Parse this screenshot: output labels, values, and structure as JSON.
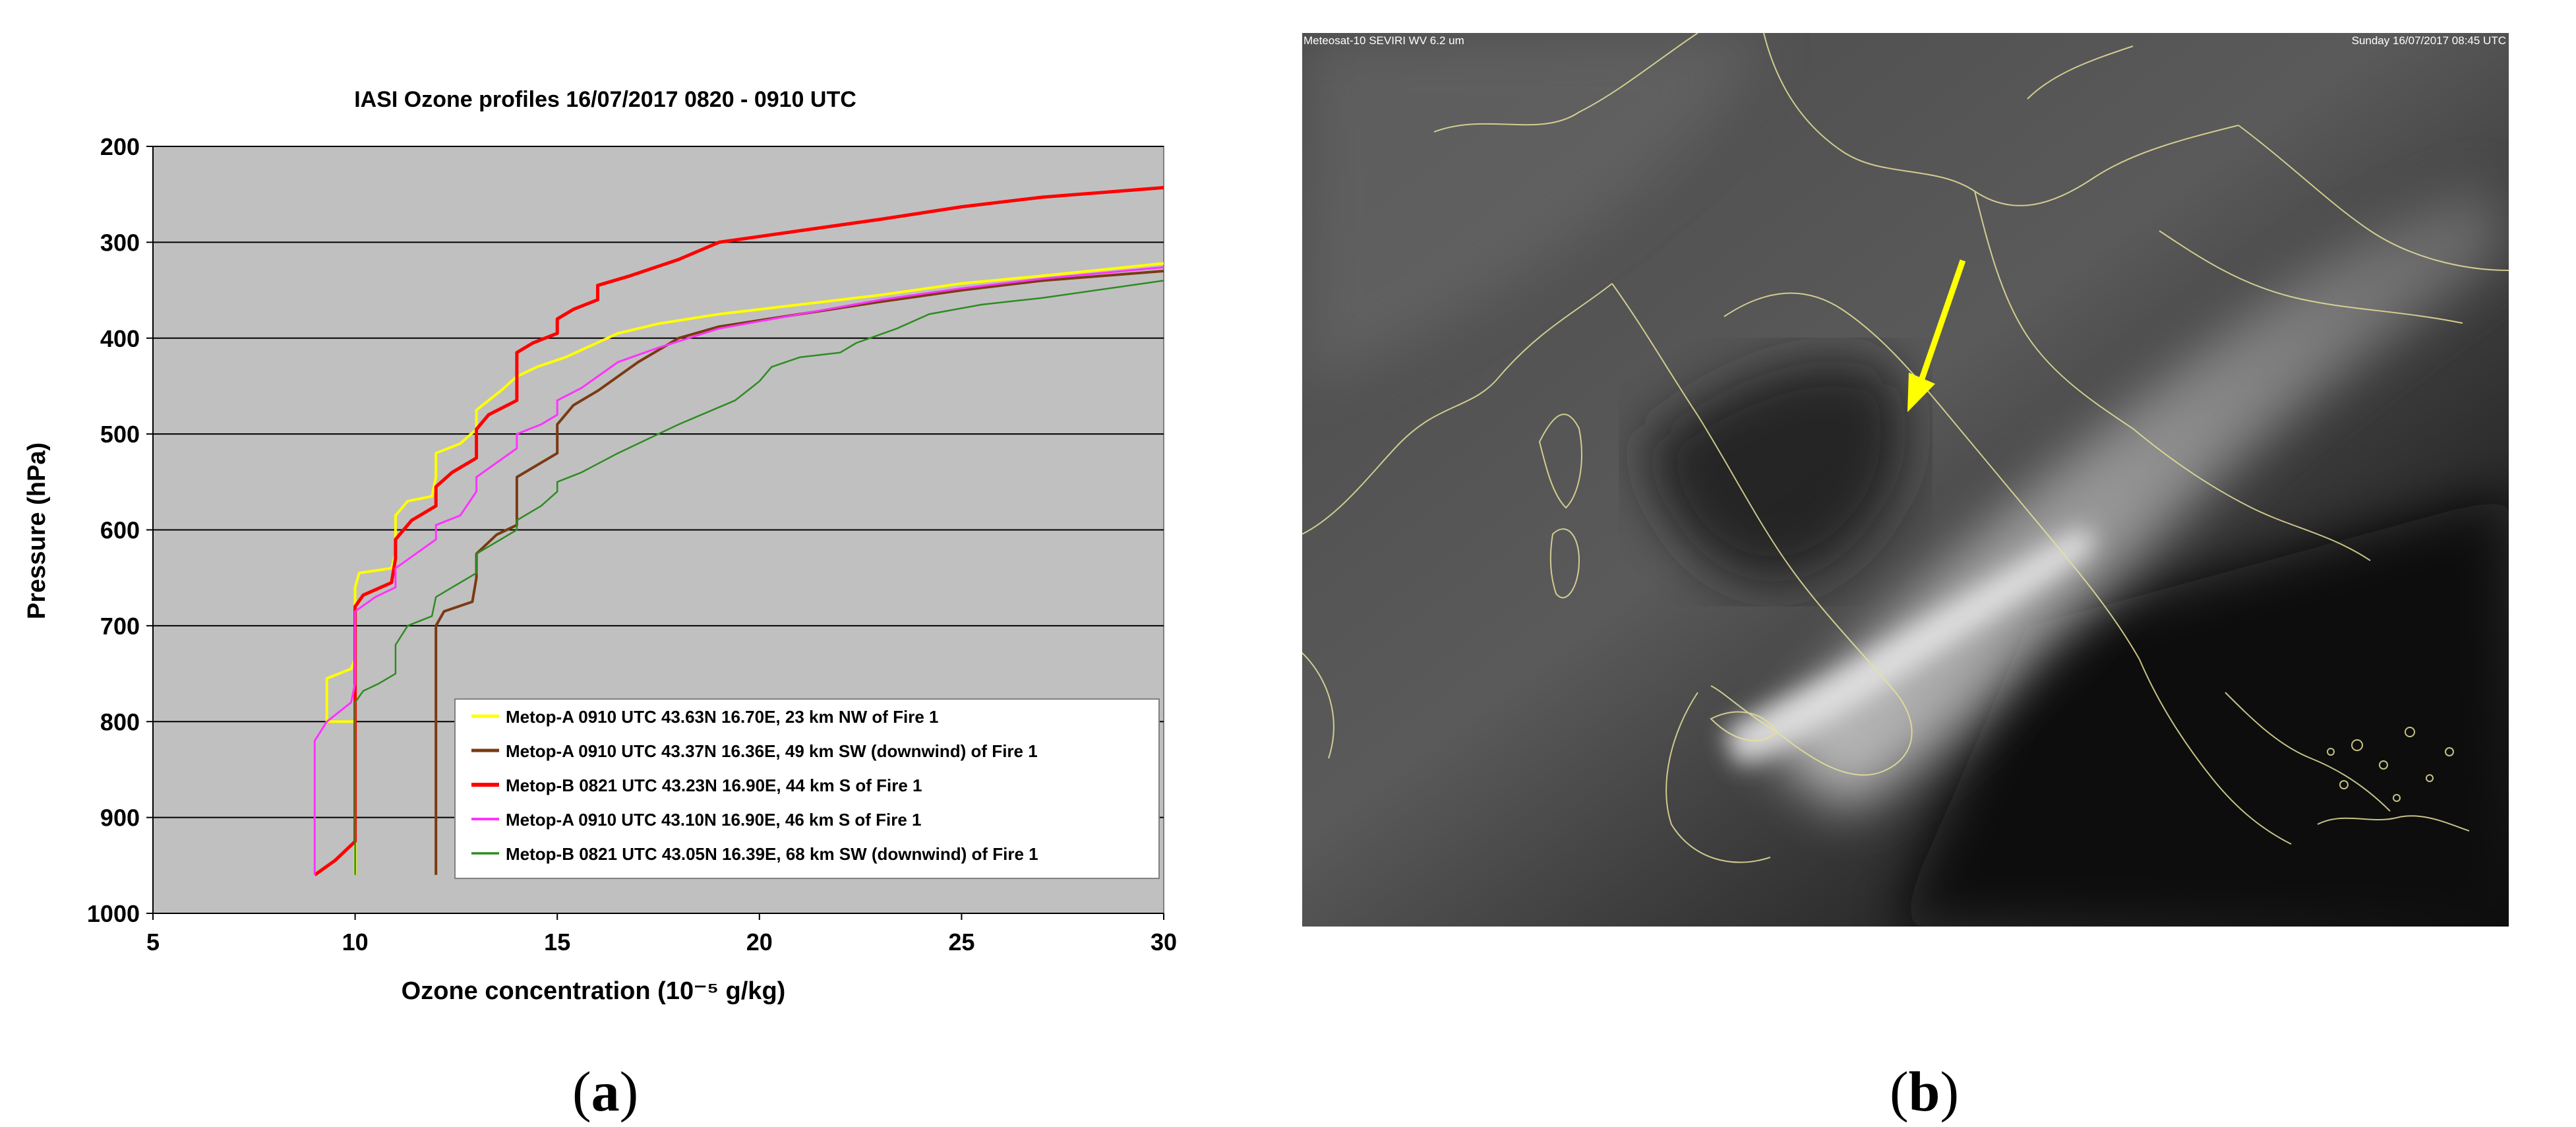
{
  "panel_a_label": "a",
  "panel_b_label": "b",
  "satellite": {
    "header_left": "Meteosat-10 SEVIRI WV 6.2 um",
    "header_right": "Sunday 16/07/2017 08:45 UTC",
    "arrow_color": "#ffff00",
    "coast_color": "#e8e29a"
  },
  "chart_data": {
    "type": "line",
    "title": "IASI Ozone profiles 16/07/2017 0820 - 0910 UTC",
    "xlabel": "Ozone concentration (10⁻⁵ g/kg)",
    "ylabel": "Pressure (hPa)",
    "xlim": [
      5,
      30
    ],
    "ylim": [
      1000,
      200
    ],
    "y_inverted": true,
    "xticks": [
      "5",
      "10",
      "15",
      "20",
      "25",
      "30"
    ],
    "yticks": [
      "200",
      "300",
      "400",
      "500",
      "600",
      "700",
      "800",
      "900",
      "1000"
    ],
    "grid": "horizontal",
    "background": "#c0c0c0",
    "legend_position": "lower-right",
    "series": [
      {
        "name": "Metop-A 0910 UTC 43.63N 16.70E, 23 km NW of Fire 1",
        "color": "#ffff00",
        "width": 4,
        "points": [
          [
            10,
            960
          ],
          [
            10,
            800
          ],
          [
            9.3,
            800
          ],
          [
            9.3,
            755
          ],
          [
            9.9,
            745
          ],
          [
            10,
            735
          ],
          [
            10,
            660
          ],
          [
            10.1,
            645
          ],
          [
            10.9,
            640
          ],
          [
            11,
            625
          ],
          [
            11,
            585
          ],
          [
            11.3,
            570
          ],
          [
            11.9,
            565
          ],
          [
            12,
            545
          ],
          [
            12,
            520
          ],
          [
            12.6,
            510
          ],
          [
            13,
            495
          ],
          [
            13,
            475
          ],
          [
            13.6,
            455
          ],
          [
            14,
            440
          ],
          [
            14.5,
            430
          ],
          [
            15.2,
            420
          ],
          [
            16.5,
            395
          ],
          [
            17.5,
            385
          ],
          [
            19,
            375
          ],
          [
            21,
            365
          ],
          [
            23,
            355
          ],
          [
            25,
            343
          ],
          [
            27,
            335
          ],
          [
            30,
            322
          ]
        ]
      },
      {
        "name": "Metop-A 0910 UTC 43.37N 16.36E, 49 km SW (downwind) of Fire 1",
        "color": "#7b3a12",
        "width": 4,
        "points": [
          [
            12,
            960
          ],
          [
            12,
            700
          ],
          [
            12.2,
            685
          ],
          [
            12.9,
            675
          ],
          [
            13,
            650
          ],
          [
            13,
            625
          ],
          [
            13.5,
            605
          ],
          [
            14,
            595
          ],
          [
            14,
            545
          ],
          [
            14.4,
            535
          ],
          [
            15,
            520
          ],
          [
            15,
            490
          ],
          [
            15.4,
            470
          ],
          [
            16,
            455
          ],
          [
            16.5,
            440
          ],
          [
            17,
            425
          ],
          [
            18,
            400
          ],
          [
            19,
            388
          ],
          [
            21,
            375
          ],
          [
            23,
            362
          ],
          [
            25,
            350
          ],
          [
            27,
            340
          ],
          [
            30,
            330
          ]
        ]
      },
      {
        "name": "Metop-B 0821 UTC 43.23N 16.90E, 44 km  S of Fire 1",
        "color": "#ff0000",
        "width": 5,
        "points": [
          [
            9,
            960
          ],
          [
            9.5,
            945
          ],
          [
            10,
            925
          ],
          [
            10,
            680
          ],
          [
            10.2,
            668
          ],
          [
            10.9,
            655
          ],
          [
            11,
            630
          ],
          [
            11,
            610
          ],
          [
            11.4,
            590
          ],
          [
            12,
            575
          ],
          [
            12,
            555
          ],
          [
            12.4,
            540
          ],
          [
            13,
            525
          ],
          [
            13,
            495
          ],
          [
            13.3,
            480
          ],
          [
            14,
            465
          ],
          [
            14,
            415
          ],
          [
            14.4,
            405
          ],
          [
            15,
            395
          ],
          [
            15,
            380
          ],
          [
            15.4,
            370
          ],
          [
            16,
            360
          ],
          [
            16,
            345
          ],
          [
            16.8,
            335
          ],
          [
            18,
            318
          ],
          [
            19,
            300
          ],
          [
            21,
            288
          ],
          [
            23,
            276
          ],
          [
            25,
            263
          ],
          [
            27,
            253
          ],
          [
            30,
            243
          ]
        ]
      },
      {
        "name": "Metop-A 0910 UTC 43.10N 16.90E, 46 km  S of Fire 1",
        "color": "#ff33ff",
        "width": 3,
        "points": [
          [
            9,
            960
          ],
          [
            9,
            820
          ],
          [
            9.3,
            800
          ],
          [
            9.9,
            780
          ],
          [
            10,
            760
          ],
          [
            10,
            685
          ],
          [
            10.5,
            670
          ],
          [
            11,
            660
          ],
          [
            11,
            640
          ],
          [
            11.5,
            625
          ],
          [
            12,
            610
          ],
          [
            12,
            595
          ],
          [
            12.6,
            585
          ],
          [
            13,
            560
          ],
          [
            13,
            545
          ],
          [
            13.5,
            530
          ],
          [
            14,
            515
          ],
          [
            14,
            500
          ],
          [
            14.6,
            490
          ],
          [
            15,
            480
          ],
          [
            15,
            465
          ],
          [
            15.6,
            452
          ],
          [
            16,
            440
          ],
          [
            16.5,
            425
          ],
          [
            17.5,
            410
          ],
          [
            19,
            390
          ],
          [
            21,
            375
          ],
          [
            23,
            360
          ],
          [
            25,
            348
          ],
          [
            27,
            338
          ],
          [
            30,
            326
          ]
        ]
      },
      {
        "name": "Metop-B 0821 UTC 43.05N 16.39E, 68 km SW (downwind) of Fire 1",
        "color": "#2e8b22",
        "width": 2.5,
        "points": [
          [
            10,
            960
          ],
          [
            10,
            780
          ],
          [
            10.2,
            768
          ],
          [
            10.6,
            760
          ],
          [
            11,
            750
          ],
          [
            11,
            720
          ],
          [
            11.3,
            700
          ],
          [
            11.9,
            690
          ],
          [
            12,
            670
          ],
          [
            12.4,
            660
          ],
          [
            13,
            645
          ],
          [
            13,
            625
          ],
          [
            13.6,
            610
          ],
          [
            14,
            600
          ],
          [
            14,
            590
          ],
          [
            14.6,
            575
          ],
          [
            15,
            560
          ],
          [
            15,
            550
          ],
          [
            15.6,
            540
          ],
          [
            16.5,
            520
          ],
          [
            18,
            490
          ],
          [
            19.4,
            465
          ],
          [
            20,
            445
          ],
          [
            20.3,
            430
          ],
          [
            21,
            420
          ],
          [
            22,
            415
          ],
          [
            22.4,
            405
          ],
          [
            23.4,
            390
          ],
          [
            24.2,
            375
          ],
          [
            25.5,
            365
          ],
          [
            27,
            358
          ],
          [
            30,
            340
          ]
        ]
      }
    ]
  }
}
